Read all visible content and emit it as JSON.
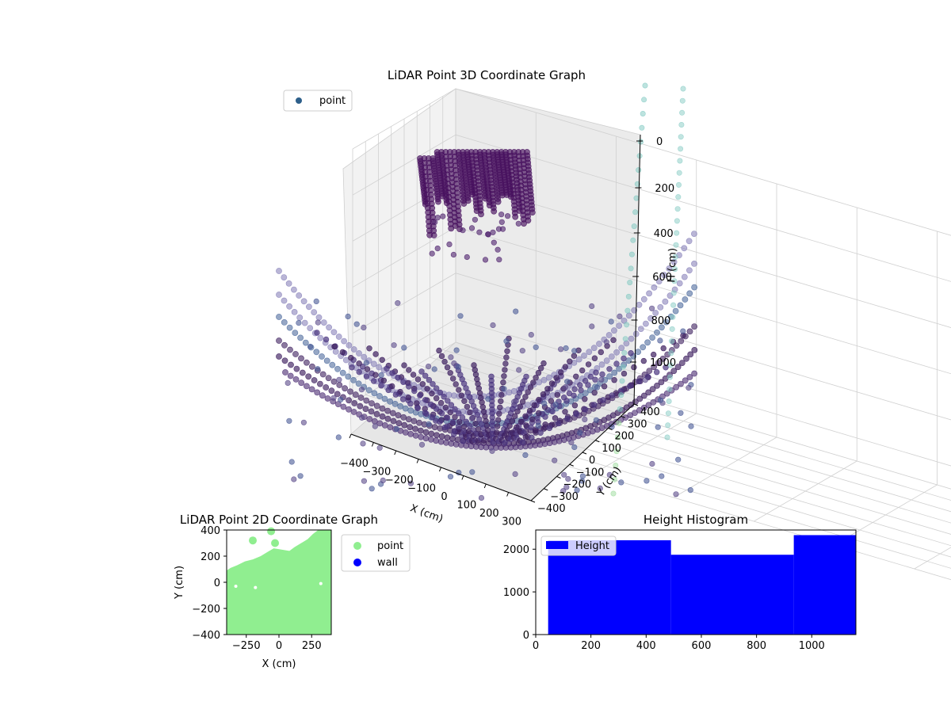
{
  "chart_data": [
    {
      "type": "scatter",
      "projection": "3d",
      "title": "LiDAR Point 3D Coordinate Graph",
      "xlabel": "X (cm)",
      "ylabel": "Y (cm)",
      "zlabel": "H (cm)",
      "z_axis_inverted": true,
      "grid": true,
      "legend": {
        "placement": "top-left",
        "entries": [
          "point"
        ]
      },
      "colormap": "viridis",
      "x_ticks": [
        "−400",
        "−300",
        "−200",
        "−100",
        "0",
        "100",
        "200",
        "300"
      ],
      "y_ticks": [
        "−400",
        "−300",
        "−200",
        "−100",
        "0",
        "100",
        "200",
        "300",
        "400"
      ],
      "z_ticks": [
        "0",
        "200",
        "400",
        "600",
        "800",
        "1000"
      ],
      "xlim": [
        -400,
        400
      ],
      "ylim": [
        -400,
        400
      ],
      "zlim": [
        0,
        1100
      ],
      "series": [
        {
          "name": "point",
          "description_values": {
            "ceiling_cluster": {
              "x": [
                -100,
                100
              ],
              "y": [
                50,
                350
              ],
              "h": [
                0,
                300
              ]
            },
            "floor_bowl": {
              "x": [
                -400,
                400
              ],
              "y": [
                -400,
                400
              ],
              "h": [
                700,
                1100
              ]
            }
          }
        }
      ]
    },
    {
      "type": "scatter",
      "title": "LiDAR Point 2D Coordinate Graph",
      "xlabel": "X (cm)",
      "ylabel": "Y (cm)",
      "xlim": [
        -400,
        400
      ],
      "ylim": [
        -400,
        400
      ],
      "x_ticks": [
        "−250",
        "0",
        "250"
      ],
      "y_ticks": [
        "−400",
        "−200",
        "0",
        "200",
        "400"
      ],
      "legend": {
        "placement": "outside-right",
        "entries": [
          "point",
          "wall"
        ]
      },
      "series": [
        {
          "name": "point",
          "color": "#90ee90"
        },
        {
          "name": "wall",
          "color": "#0000ff"
        }
      ]
    },
    {
      "type": "bar",
      "title": "Height Histogram",
      "legend": {
        "placement": "top-left",
        "entries": [
          "Height"
        ]
      },
      "xlim": [
        0,
        1160
      ],
      "ylim": [
        0,
        2450
      ],
      "x_ticks": [
        "0",
        "200",
        "400",
        "600",
        "800",
        "1000"
      ],
      "y_ticks": [
        "0",
        "1000",
        "2000"
      ],
      "series": [
        {
          "name": "Height",
          "color": "#0000ff",
          "bins": [
            [
              45,
              490
            ],
            [
              490,
              935
            ],
            [
              935,
              1160
            ]
          ],
          "values": [
            2210,
            1870,
            2330
          ]
        }
      ]
    }
  ]
}
